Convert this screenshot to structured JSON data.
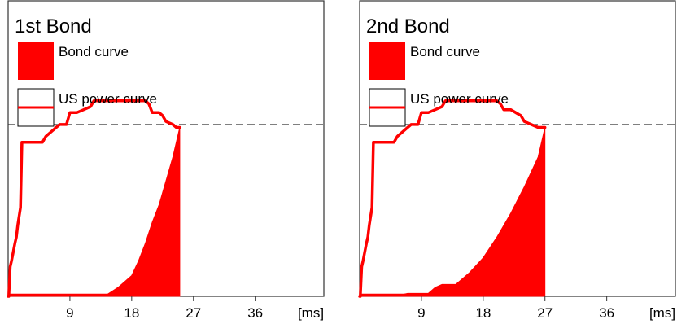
{
  "chart_data": [
    {
      "type": "area",
      "title": "1st Bond",
      "x_unit": "[ms]",
      "xlim": [
        0,
        46
      ],
      "ylim": [
        0,
        100
      ],
      "x_ticks": [
        9,
        18,
        27,
        36
      ],
      "reference_line_y": 58,
      "legend": [
        {
          "name": "Bond curve",
          "style": "filled",
          "color": "#ff0000"
        },
        {
          "name": "US power curve",
          "style": "line",
          "color": "#ff0000"
        }
      ],
      "series": [
        {
          "name": "Bond curve",
          "x": [
            0,
            14,
            16,
            18,
            19,
            20,
            21,
            22,
            23,
            24,
            25,
            25
          ],
          "y": [
            0,
            0,
            3,
            7,
            12,
            18,
            25,
            31,
            39,
            47,
            57,
            0
          ]
        },
        {
          "name": "US power curve",
          "x": [
            0,
            0.1,
            0.3,
            0.5,
            1,
            1.2,
            1.4,
            1.8,
            2,
            5,
            5.5,
            6,
            6.5,
            7,
            7.5,
            8.5,
            9,
            10,
            11,
            12,
            12.5,
            13,
            20,
            20.5,
            21,
            22,
            22.5,
            23,
            24,
            24.5,
            25
          ],
          "y": [
            0,
            0,
            10,
            12,
            18,
            20,
            24,
            30,
            52,
            52,
            54,
            55,
            56,
            57,
            58,
            58,
            62,
            62,
            63,
            64,
            66,
            66,
            66,
            65,
            62,
            62,
            61,
            59,
            58,
            57,
            57
          ]
        }
      ]
    },
    {
      "type": "area",
      "title": "2nd Bond",
      "x_unit": "[ms]",
      "xlim": [
        0,
        46
      ],
      "ylim": [
        0,
        100
      ],
      "x_ticks": [
        9,
        18,
        27,
        36
      ],
      "reference_line_y": 58,
      "legend": [
        {
          "name": "Bond curve",
          "style": "filled",
          "color": "#ff0000"
        },
        {
          "name": "US power curve",
          "style": "line",
          "color": "#ff0000"
        }
      ],
      "series": [
        {
          "name": "Bond curve",
          "x": [
            0,
            5,
            7,
            10,
            11,
            12,
            14,
            16,
            18,
            20,
            22,
            24,
            26,
            27,
            27
          ],
          "y": [
            0,
            0,
            1,
            1,
            3,
            4,
            4,
            8,
            13,
            20,
            28,
            37,
            47,
            57,
            0
          ]
        },
        {
          "name": "US power curve",
          "x": [
            0,
            0.1,
            0.3,
            0.5,
            1,
            1.2,
            1.4,
            1.8,
            2,
            5,
            5.5,
            6,
            6.5,
            7,
            7.5,
            8.5,
            9,
            10,
            11,
            12,
            12.5,
            13,
            20,
            20.5,
            21,
            22,
            23.5,
            24,
            25,
            26,
            26.5,
            27
          ],
          "y": [
            0,
            0,
            10,
            12,
            18,
            20,
            24,
            30,
            52,
            52,
            54,
            55,
            56,
            57,
            58,
            58,
            62,
            62,
            63,
            64,
            66,
            66,
            66,
            65,
            63,
            63,
            61,
            59,
            58,
            57,
            57,
            57
          ]
        }
      ]
    }
  ]
}
